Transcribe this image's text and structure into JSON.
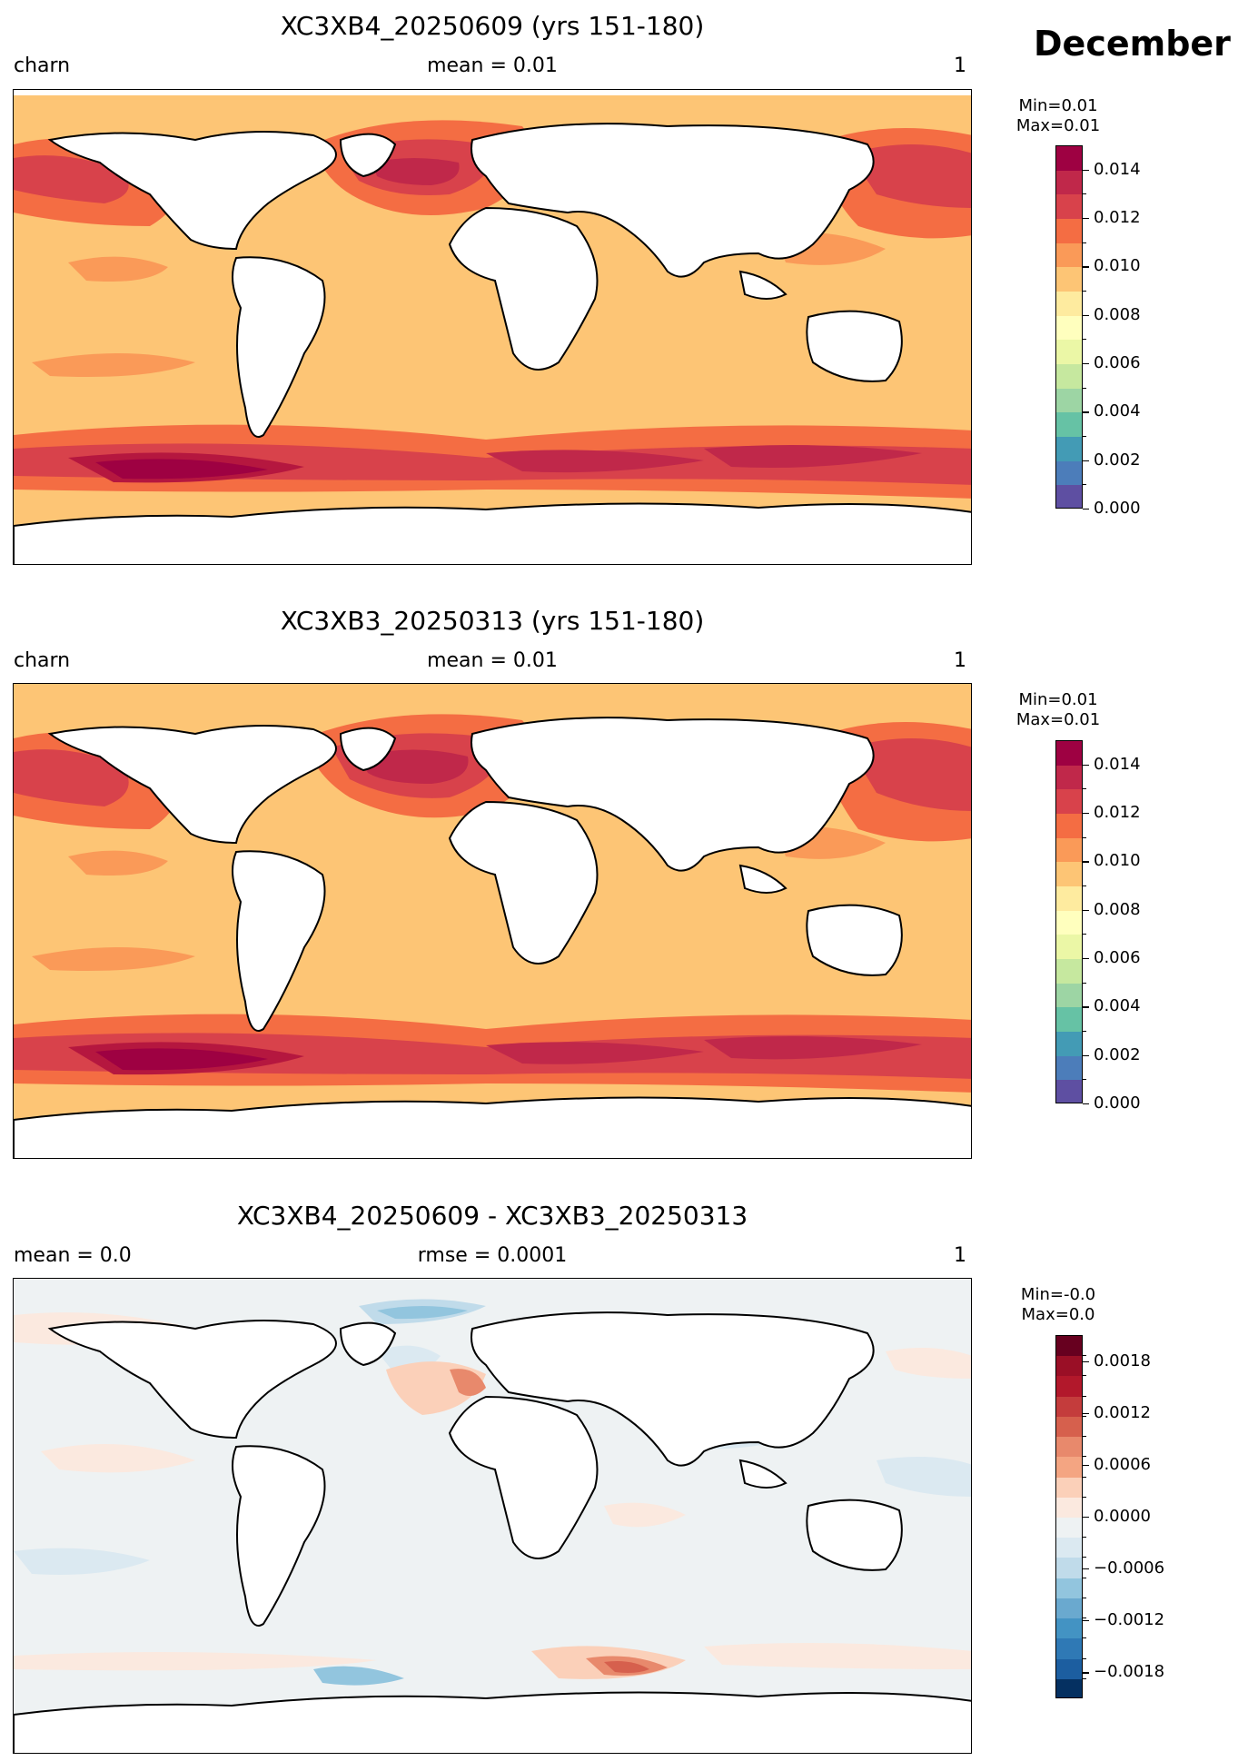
{
  "figure": {
    "month_label": "December"
  },
  "panels": [
    {
      "title": "XC3XB4_20250609 (yrs 151-180)",
      "left_label": "charn",
      "center_label": "mean = 0.01",
      "right_label": "1",
      "colorbar": {
        "min_label": "Min=0.01",
        "max_label": "Max=0.01",
        "ticks": [
          "0.014",
          "0.012",
          "0.010",
          "0.008",
          "0.006",
          "0.004",
          "0.002",
          "0.000"
        ],
        "colors": [
          "#9e0142",
          "#c0284a",
          "#d8424b",
          "#f46d43",
          "#fa9a58",
          "#fdc575",
          "#feeb9f",
          "#ffffbe",
          "#ebf7a6",
          "#c6e89f",
          "#9dd5a4",
          "#66c2a5",
          "#439bb5",
          "#4c7dba",
          "#5e4fa2"
        ]
      },
      "map": {
        "field": "charn",
        "ocean_color": "#fdc575",
        "high_color": "#d8424b",
        "peak_color": "#b5173f",
        "mid_color": "#f46d43"
      }
    },
    {
      "title": "XC3XB3_20250313 (yrs 151-180)",
      "left_label": "charn",
      "center_label": "mean = 0.01",
      "right_label": "1",
      "colorbar": {
        "min_label": "Min=0.01",
        "max_label": "Max=0.01",
        "ticks": [
          "0.014",
          "0.012",
          "0.010",
          "0.008",
          "0.006",
          "0.004",
          "0.002",
          "0.000"
        ],
        "colors": [
          "#9e0142",
          "#c0284a",
          "#d8424b",
          "#f46d43",
          "#fa9a58",
          "#fdc575",
          "#feeb9f",
          "#ffffbe",
          "#ebf7a6",
          "#c6e89f",
          "#9dd5a4",
          "#66c2a5",
          "#439bb5",
          "#4c7dba",
          "#5e4fa2"
        ]
      },
      "map": {
        "field": "charn",
        "ocean_color": "#fdc575",
        "high_color": "#d8424b",
        "peak_color": "#b5173f",
        "mid_color": "#f46d43"
      }
    },
    {
      "title": "XC3XB4_20250609 - XC3XB3_20250313",
      "left_label": "mean = 0.0",
      "center_label": "rmse = 0.0001",
      "right_label": "1",
      "colorbar": {
        "min_label": "Min=-0.0",
        "max_label": "Max=0.0",
        "ticks": [
          "0.0018",
          "0.0012",
          "0.0006",
          "0.0000",
          "−0.0006",
          "−0.0012",
          "−0.0018"
        ],
        "colors": [
          "#67001f",
          "#9a0f26",
          "#b2182b",
          "#c43c3c",
          "#d6604d",
          "#e8896c",
          "#f4a582",
          "#fbd0b9",
          "#fbe9df",
          "#eef2f3",
          "#dbe9f1",
          "#c0dbea",
          "#92c5de",
          "#6aa9cf",
          "#4393c3",
          "#2f79b5",
          "#1c5ea0",
          "#053061"
        ]
      },
      "map": {
        "field": "diff",
        "ocean_color": "#eef2f3",
        "pos_color": "#fbd0b9",
        "neg_color": "#dbe9f1",
        "strong_pos": "#e8896c",
        "strong_neg": "#92c5de"
      }
    }
  ]
}
